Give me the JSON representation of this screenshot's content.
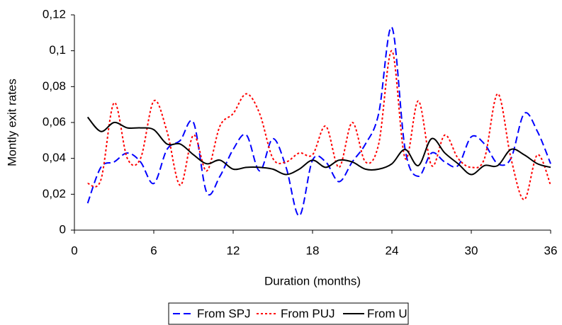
{
  "chart_data": {
    "type": "line",
    "x_label": "Duration (months)",
    "y_label": "Montly exit rates",
    "x": [
      1,
      2,
      3,
      4,
      5,
      6,
      7,
      8,
      9,
      10,
      11,
      12,
      13,
      14,
      15,
      16,
      17,
      18,
      19,
      20,
      21,
      22,
      23,
      24,
      25,
      26,
      27,
      28,
      29,
      30,
      31,
      32,
      33,
      34,
      35,
      36
    ],
    "series": [
      {
        "name": "From SPJ",
        "color": "#0000ff",
        "dash": "10,5",
        "values": [
          0.015,
          0.035,
          0.038,
          0.043,
          0.038,
          0.026,
          0.045,
          0.05,
          0.06,
          0.021,
          0.03,
          0.045,
          0.053,
          0.033,
          0.051,
          0.035,
          0.008,
          0.039,
          0.038,
          0.027,
          0.038,
          0.048,
          0.065,
          0.113,
          0.045,
          0.03,
          0.043,
          0.038,
          0.036,
          0.052,
          0.048,
          0.037,
          0.04,
          0.065,
          0.055,
          0.037
        ]
      },
      {
        "name": "From PUJ",
        "color": "#ff0000",
        "dash": "3,3",
        "values": [
          0.026,
          0.028,
          0.071,
          0.04,
          0.04,
          0.072,
          0.055,
          0.025,
          0.053,
          0.033,
          0.058,
          0.065,
          0.076,
          0.065,
          0.04,
          0.038,
          0.043,
          0.042,
          0.058,
          0.035,
          0.06,
          0.038,
          0.048,
          0.1,
          0.04,
          0.072,
          0.036,
          0.053,
          0.04,
          0.035,
          0.04,
          0.076,
          0.04,
          0.017,
          0.042,
          0.025
        ]
      },
      {
        "name": "From U",
        "color": "#000000",
        "dash": "none",
        "values": [
          0.063,
          0.055,
          0.06,
          0.057,
          0.057,
          0.056,
          0.048,
          0.048,
          0.042,
          0.037,
          0.039,
          0.034,
          0.035,
          0.035,
          0.034,
          0.031,
          0.034,
          0.039,
          0.035,
          0.039,
          0.038,
          0.034,
          0.034,
          0.037,
          0.045,
          0.036,
          0.051,
          0.043,
          0.037,
          0.031,
          0.036,
          0.036,
          0.045,
          0.042,
          0.037,
          0.035
        ]
      }
    ],
    "xlim": [
      0,
      36
    ],
    "xticks": [
      0,
      6,
      12,
      18,
      24,
      30,
      36
    ],
    "ylim": [
      0,
      0.12
    ],
    "yticks": [
      {
        "value": 0,
        "label": "0"
      },
      {
        "value": 0.02,
        "label": "0,02"
      },
      {
        "value": 0.04,
        "label": "0,04"
      },
      {
        "value": 0.06,
        "label": "0,06"
      },
      {
        "value": 0.08,
        "label": "0,08"
      },
      {
        "value": 0.1,
        "label": "0,1"
      },
      {
        "value": 0.12,
        "label": "0,12"
      }
    ],
    "legend": "bottom"
  }
}
